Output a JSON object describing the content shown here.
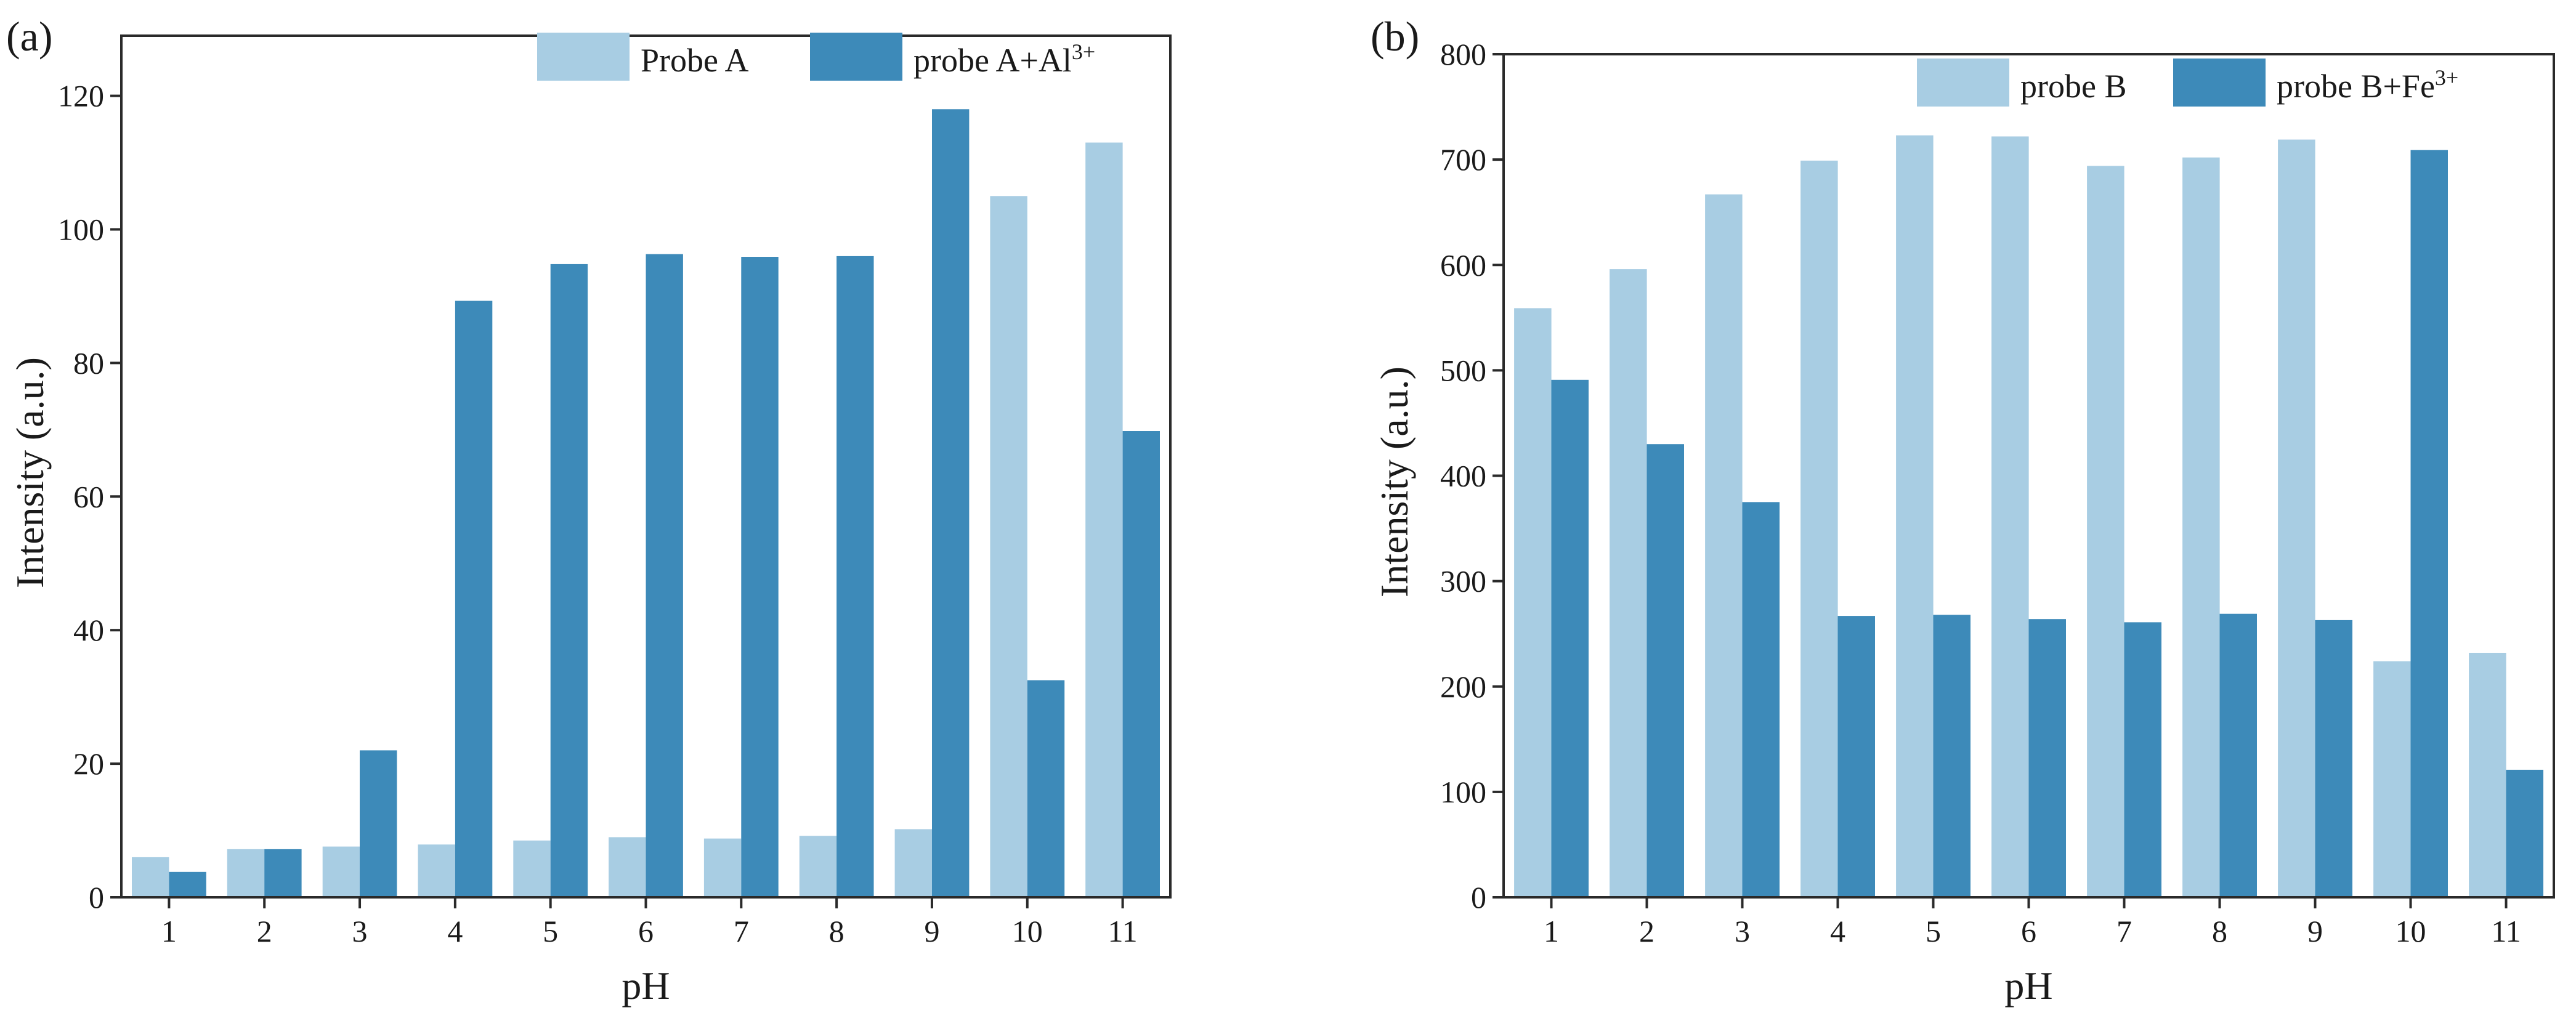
{
  "chart_data": [
    {
      "type": "bar",
      "panel_label": "(a)",
      "categories": [
        "1",
        "2",
        "3",
        "4",
        "5",
        "6",
        "7",
        "8",
        "9",
        "10",
        "11"
      ],
      "series": [
        {
          "name": "Probe A",
          "legend_text": "Probe A",
          "legend_sup": "",
          "color": "#a8cde3",
          "values": [
            6,
            7.2,
            7.6,
            7.9,
            8.5,
            9,
            8.8,
            9.2,
            10.2,
            105,
            113
          ]
        },
        {
          "name": "probe A+Al3+",
          "legend_text": "probe A+Al",
          "legend_sup": "3+",
          "color": "#3d8ab9",
          "values": [
            3.8,
            7.2,
            22,
            89.3,
            94.8,
            96.3,
            95.9,
            96,
            118,
            32.5,
            69.8
          ]
        }
      ],
      "xlabel": "pH",
      "ylabel": "Intensity (a.u.)",
      "ylim": [
        0,
        129
      ],
      "yticks": [
        "0",
        "20",
        "40",
        "60",
        "80",
        "100",
        "120"
      ],
      "legend_position": "top-right",
      "grid": false
    },
    {
      "type": "bar",
      "panel_label": "(b)",
      "categories": [
        "1",
        "2",
        "3",
        "4",
        "5",
        "6",
        "7",
        "8",
        "9",
        "10",
        "11"
      ],
      "series": [
        {
          "name": "probe B",
          "legend_text": "probe B",
          "legend_sup": "",
          "color": "#a8cde3",
          "values": [
            559,
            596,
            667,
            699,
            723,
            722,
            694,
            702,
            719,
            224,
            232
          ]
        },
        {
          "name": "probe B+Fe3+",
          "legend_text": "probe B+Fe",
          "legend_sup": "3+",
          "color": "#3d8ab9",
          "values": [
            491,
            430,
            375,
            267,
            268,
            264,
            261,
            269,
            263,
            709,
            121
          ]
        }
      ],
      "xlabel": "pH",
      "ylabel": "Intensity (a.u.)",
      "ylim": [
        0,
        800
      ],
      "yticks": [
        "0",
        "100",
        "200",
        "300",
        "400",
        "500",
        "600",
        "700",
        "800"
      ],
      "legend_position": "top-right",
      "grid": false
    }
  ]
}
